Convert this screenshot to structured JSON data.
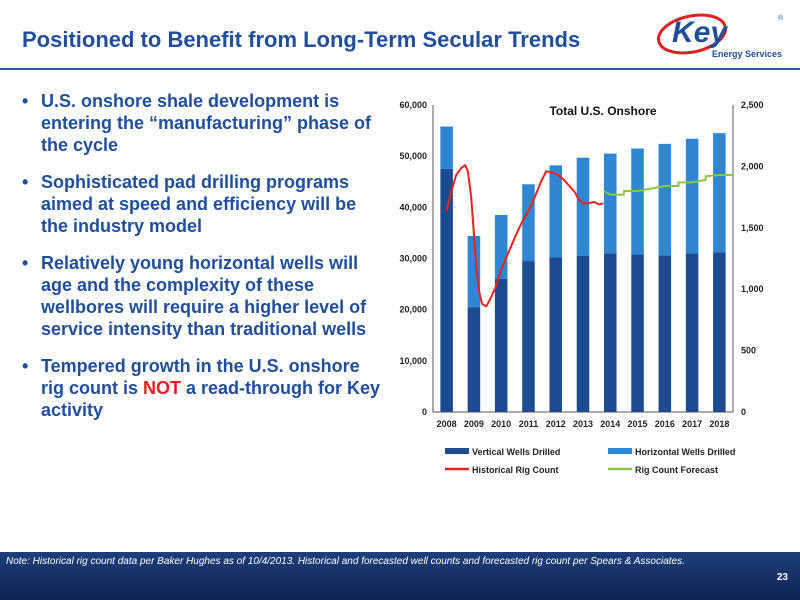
{
  "slide": {
    "title": "Positioned to Benefit from Long-Term Secular Trends",
    "logo_text": "Key",
    "logo_subtext": "Energy Services",
    "logo_mark": "®",
    "bullets": [
      "U.S. onshore shale development is entering the “manufacturing” phase of the cycle",
      "Sophisticated pad drilling programs aimed at speed and efficiency will be the industry model",
      "Relatively young horizontal wells will age and the complexity of these wellbores will require a higher level of service intensity than traditional wells"
    ],
    "bullet4": {
      "before": "Tempered growth in the U.S. onshore rig count is ",
      "emphasis": "NOT",
      "after": " a read-through for Key activity"
    },
    "bullet_char": "•",
    "note": "Note: Historical rig count data per Baker Hughes as of 10/4/2013. Historical and forecasted well counts and forecasted rig count per Spears & Associates.",
    "page_number": "23"
  },
  "colors": {
    "title": "#1f4e9a",
    "vertical": "#1e4b8f",
    "horizontal": "#2e86d4",
    "historical": "#e8231f",
    "forecast": "#8cc63f",
    "emphasis": "#e02020"
  },
  "chart_data": {
    "type": "bar",
    "title": "Total U.S. Onshore",
    "categories": [
      "2008",
      "2009",
      "2010",
      "2011",
      "2012",
      "2013",
      "2014",
      "2015",
      "2016",
      "2017",
      "2018"
    ],
    "stacked": true,
    "series": [
      {
        "name": "Vertical Wells Drilled",
        "axis": "left",
        "values": [
          47500,
          20500,
          26000,
          29500,
          30200,
          30500,
          31000,
          30800,
          30600,
          31000,
          31200
        ]
      },
      {
        "name": "Horizontal Wells Drilled",
        "axis": "left",
        "values": [
          8300,
          13900,
          12500,
          15000,
          18000,
          19200,
          19500,
          20700,
          21800,
          22400,
          23300
        ]
      }
    ],
    "lines": [
      {
        "name": "Historical Rig Count",
        "axis": "right",
        "points": [
          [
            2008.0,
            1640
          ],
          [
            2008.15,
            1780
          ],
          [
            2008.35,
            1930
          ],
          [
            2008.55,
            1990
          ],
          [
            2008.68,
            2010
          ],
          [
            2008.78,
            1960
          ],
          [
            2008.9,
            1750
          ],
          [
            2009.0,
            1450
          ],
          [
            2009.1,
            1150
          ],
          [
            2009.2,
            970
          ],
          [
            2009.3,
            880
          ],
          [
            2009.45,
            860
          ],
          [
            2009.6,
            920
          ],
          [
            2009.8,
            1020
          ],
          [
            2010.0,
            1160
          ],
          [
            2010.25,
            1290
          ],
          [
            2010.5,
            1420
          ],
          [
            2010.75,
            1540
          ],
          [
            2011.0,
            1640
          ],
          [
            2011.25,
            1760
          ],
          [
            2011.45,
            1870
          ],
          [
            2011.65,
            1960
          ],
          [
            2011.85,
            1950
          ],
          [
            2012.1,
            1930
          ],
          [
            2012.3,
            1890
          ],
          [
            2012.5,
            1840
          ],
          [
            2012.7,
            1790
          ],
          [
            2012.85,
            1730
          ],
          [
            2013.0,
            1700
          ],
          [
            2013.2,
            1700
          ],
          [
            2013.4,
            1710
          ],
          [
            2013.6,
            1690
          ],
          [
            2013.75,
            1700
          ]
        ]
      },
      {
        "name": "Rig Count Forecast",
        "axis": "right",
        "points": [
          [
            2013.75,
            1800
          ],
          [
            2014.0,
            1770
          ],
          [
            2014.5,
            1770
          ],
          [
            2014.5,
            1800
          ],
          [
            2015.0,
            1800
          ],
          [
            2015.5,
            1820
          ],
          [
            2016.0,
            1840
          ],
          [
            2016.5,
            1840
          ],
          [
            2016.5,
            1870
          ],
          [
            2017.0,
            1870
          ],
          [
            2017.5,
            1890
          ],
          [
            2017.5,
            1920
          ],
          [
            2018.0,
            1930
          ],
          [
            2018.5,
            1930
          ]
        ]
      }
    ],
    "y_left": {
      "min": 0,
      "max": 60000,
      "ticks": [
        "0",
        "10,000",
        "20,000",
        "30,000",
        "40,000",
        "50,000",
        "60,000"
      ]
    },
    "y_right": {
      "min": 0,
      "max": 2500,
      "ticks": [
        "0",
        "500",
        "1,000",
        "1,500",
        "2,000",
        "2,500"
      ]
    },
    "grid": false,
    "legend_position": "bottom"
  }
}
